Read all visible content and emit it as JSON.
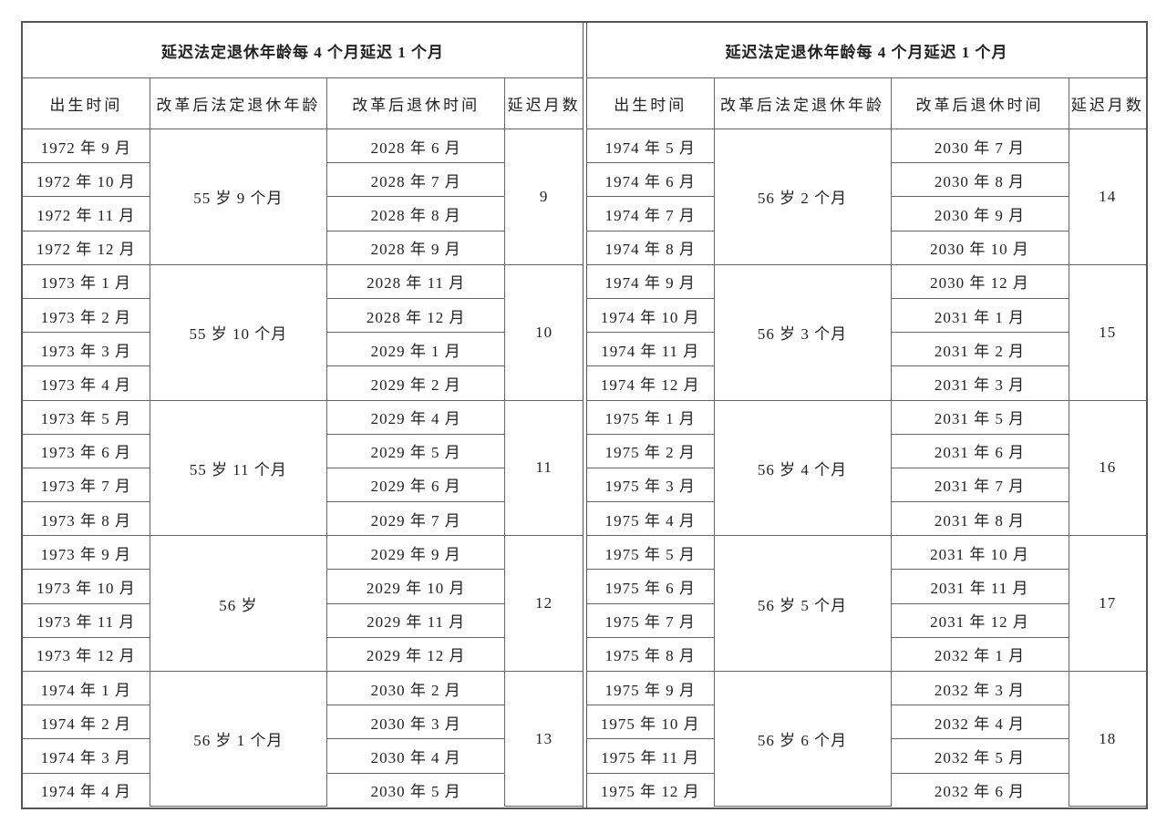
{
  "tables": [
    {
      "title": "延迟法定退休年龄每 4 个月延迟 1 个月",
      "headers": [
        "出生时间",
        "改革后法定退休年龄",
        "改革后退休时间",
        "延迟月数"
      ],
      "groups": [
        {
          "age": "55 岁 9 个月",
          "months": "9",
          "rows": [
            [
              "1972 年 9 月",
              "2028 年 6 月"
            ],
            [
              "1972 年 10 月",
              "2028 年 7 月"
            ],
            [
              "1972 年 11 月",
              "2028 年 8 月"
            ],
            [
              "1972 年 12 月",
              "2028 年 9 月"
            ]
          ]
        },
        {
          "age": "55 岁 10 个月",
          "months": "10",
          "rows": [
            [
              "1973 年 1 月",
              "2028 年 11 月"
            ],
            [
              "1973 年 2 月",
              "2028 年 12 月"
            ],
            [
              "1973 年 3 月",
              "2029 年 1 月"
            ],
            [
              "1973 年 4 月",
              "2029 年 2 月"
            ]
          ]
        },
        {
          "age": "55 岁 11 个月",
          "months": "11",
          "rows": [
            [
              "1973 年 5 月",
              "2029 年 4 月"
            ],
            [
              "1973 年 6 月",
              "2029 年 5 月"
            ],
            [
              "1973 年 7 月",
              "2029 年 6 月"
            ],
            [
              "1973 年 8 月",
              "2029 年 7 月"
            ]
          ]
        },
        {
          "age": "56 岁",
          "months": "12",
          "rows": [
            [
              "1973 年 9 月",
              "2029 年 9 月"
            ],
            [
              "1973 年 10 月",
              "2029 年 10 月"
            ],
            [
              "1973 年 11 月",
              "2029 年 11 月"
            ],
            [
              "1973 年 12 月",
              "2029 年 12 月"
            ]
          ]
        },
        {
          "age": "56 岁 1 个月",
          "months": "13",
          "rows": [
            [
              "1974 年 1 月",
              "2030 年 2 月"
            ],
            [
              "1974 年 2 月",
              "2030 年 3 月"
            ],
            [
              "1974 年 3 月",
              "2030 年 4 月"
            ],
            [
              "1974 年 4 月",
              "2030 年 5 月"
            ]
          ]
        }
      ]
    },
    {
      "title": "延迟法定退休年龄每 4 个月延迟 1 个月",
      "headers": [
        "出生时间",
        "改革后法定退休年龄",
        "改革后退休时间",
        "延迟月数"
      ],
      "groups": [
        {
          "age": "56 岁 2 个月",
          "months": "14",
          "rows": [
            [
              "1974 年 5 月",
              "2030 年 7 月"
            ],
            [
              "1974 年 6 月",
              "2030 年 8 月"
            ],
            [
              "1974 年 7 月",
              "2030 年 9 月"
            ],
            [
              "1974 年 8 月",
              "2030 年 10 月"
            ]
          ]
        },
        {
          "age": "56 岁 3 个月",
          "months": "15",
          "rows": [
            [
              "1974 年 9 月",
              "2030 年 12 月"
            ],
            [
              "1974 年 10 月",
              "2031 年 1 月"
            ],
            [
              "1974 年 11 月",
              "2031 年 2 月"
            ],
            [
              "1974 年 12 月",
              "2031 年 3 月"
            ]
          ]
        },
        {
          "age": "56 岁 4 个月",
          "months": "16",
          "rows": [
            [
              "1975 年 1 月",
              "2031 年 5 月"
            ],
            [
              "1975 年 2 月",
              "2031 年 6 月"
            ],
            [
              "1975 年 3 月",
              "2031 年 7 月"
            ],
            [
              "1975 年 4 月",
              "2031 年 8 月"
            ]
          ]
        },
        {
          "age": "56 岁 5 个月",
          "months": "17",
          "rows": [
            [
              "1975 年 5 月",
              "2031 年 10 月"
            ],
            [
              "1975 年 6 月",
              "2031 年 11 月"
            ],
            [
              "1975 年 7 月",
              "2031 年 12 月"
            ],
            [
              "1975 年 8 月",
              "2032 年 1 月"
            ]
          ]
        },
        {
          "age": "56 岁 6 个月",
          "months": "18",
          "rows": [
            [
              "1975 年 9 月",
              "2032 年 3 月"
            ],
            [
              "1975 年 10 月",
              "2032 年 4 月"
            ],
            [
              "1975 年 11 月",
              "2032 年 5 月"
            ],
            [
              "1975 年 12 月",
              "2032 年 6 月"
            ]
          ]
        }
      ]
    }
  ]
}
